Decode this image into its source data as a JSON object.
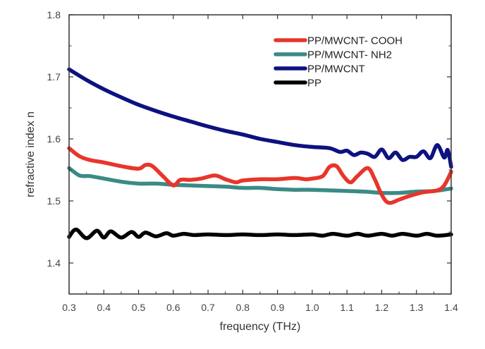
{
  "chart_data": {
    "type": "line",
    "title": "",
    "xlabel": "frequency (THz)",
    "ylabel": "refractive index n",
    "xlim": [
      0.3,
      1.4
    ],
    "ylim": [
      1.35,
      1.8
    ],
    "xticks": [
      "0.3",
      "0.4",
      "0.5",
      "0.6",
      "0.7",
      "0.8",
      "0.9",
      "1.0",
      "1.1",
      "1.2",
      "1.3",
      "1.4"
    ],
    "xtick_values": [
      0.3,
      0.4,
      0.5,
      0.6,
      0.7,
      0.8,
      0.9,
      1.0,
      1.1,
      1.2,
      1.3,
      1.4
    ],
    "yticks": [
      "1.4",
      "1.5",
      "1.6",
      "1.7",
      "1.8"
    ],
    "ytick_values": [
      1.4,
      1.5,
      1.6,
      1.7,
      1.8
    ],
    "grid": false,
    "legend_position": "top-right",
    "series": [
      {
        "name": "PP/MWCNT- COOH",
        "color": "#e8352a",
        "x": [
          0.3,
          0.33,
          0.36,
          0.4,
          0.45,
          0.5,
          0.52,
          0.54,
          0.57,
          0.6,
          0.62,
          0.65,
          0.68,
          0.72,
          0.75,
          0.78,
          0.8,
          0.85,
          0.9,
          0.95,
          0.98,
          1.0,
          1.03,
          1.05,
          1.07,
          1.09,
          1.11,
          1.13,
          1.16,
          1.18,
          1.2,
          1.22,
          1.25,
          1.28,
          1.32,
          1.36,
          1.38,
          1.4
        ],
        "y": [
          1.585,
          1.572,
          1.566,
          1.562,
          1.556,
          1.552,
          1.558,
          1.556,
          1.54,
          1.525,
          1.534,
          1.534,
          1.536,
          1.541,
          1.535,
          1.53,
          1.533,
          1.535,
          1.535,
          1.537,
          1.535,
          1.536,
          1.54,
          1.555,
          1.556,
          1.54,
          1.53,
          1.54,
          1.553,
          1.535,
          1.51,
          1.497,
          1.502,
          1.508,
          1.514,
          1.517,
          1.525,
          1.547
        ]
      },
      {
        "name": "PP/MWCNT- NH2",
        "color": "#3b8a86",
        "x": [
          0.3,
          0.33,
          0.36,
          0.4,
          0.45,
          0.5,
          0.55,
          0.6,
          0.65,
          0.7,
          0.75,
          0.8,
          0.85,
          0.9,
          0.95,
          1.0,
          1.05,
          1.1,
          1.15,
          1.2,
          1.25,
          1.3,
          1.35,
          1.4
        ],
        "y": [
          1.553,
          1.541,
          1.54,
          1.536,
          1.531,
          1.528,
          1.528,
          1.526,
          1.525,
          1.524,
          1.523,
          1.521,
          1.521,
          1.519,
          1.518,
          1.518,
          1.517,
          1.516,
          1.515,
          1.513,
          1.513,
          1.515,
          1.516,
          1.52
        ]
      },
      {
        "name": "PP/MWCNT",
        "color": "#0c1280",
        "x": [
          0.3,
          0.35,
          0.4,
          0.45,
          0.5,
          0.55,
          0.6,
          0.65,
          0.7,
          0.75,
          0.8,
          0.85,
          0.9,
          0.95,
          1.0,
          1.05,
          1.08,
          1.1,
          1.12,
          1.14,
          1.16,
          1.18,
          1.2,
          1.22,
          1.24,
          1.26,
          1.28,
          1.3,
          1.32,
          1.34,
          1.36,
          1.38,
          1.39,
          1.4
        ],
        "y": [
          1.712,
          1.695,
          1.68,
          1.667,
          1.655,
          1.645,
          1.636,
          1.628,
          1.62,
          1.613,
          1.607,
          1.6,
          1.595,
          1.59,
          1.587,
          1.585,
          1.579,
          1.581,
          1.574,
          1.578,
          1.576,
          1.571,
          1.583,
          1.569,
          1.578,
          1.566,
          1.571,
          1.571,
          1.58,
          1.569,
          1.59,
          1.57,
          1.582,
          1.555
        ]
      },
      {
        "name": "PP",
        "color": "#000000",
        "x": [
          0.3,
          0.32,
          0.35,
          0.38,
          0.4,
          0.42,
          0.45,
          0.48,
          0.5,
          0.52,
          0.55,
          0.58,
          0.6,
          0.63,
          0.66,
          0.7,
          0.75,
          0.8,
          0.85,
          0.9,
          0.95,
          1.0,
          1.03,
          1.06,
          1.1,
          1.13,
          1.16,
          1.2,
          1.23,
          1.26,
          1.3,
          1.33,
          1.36,
          1.4
        ],
        "y": [
          1.442,
          1.454,
          1.44,
          1.452,
          1.441,
          1.451,
          1.441,
          1.45,
          1.442,
          1.449,
          1.443,
          1.448,
          1.444,
          1.447,
          1.445,
          1.446,
          1.445,
          1.446,
          1.445,
          1.446,
          1.445,
          1.446,
          1.444,
          1.447,
          1.444,
          1.447,
          1.444,
          1.447,
          1.444,
          1.447,
          1.444,
          1.447,
          1.444,
          1.446
        ]
      }
    ]
  }
}
